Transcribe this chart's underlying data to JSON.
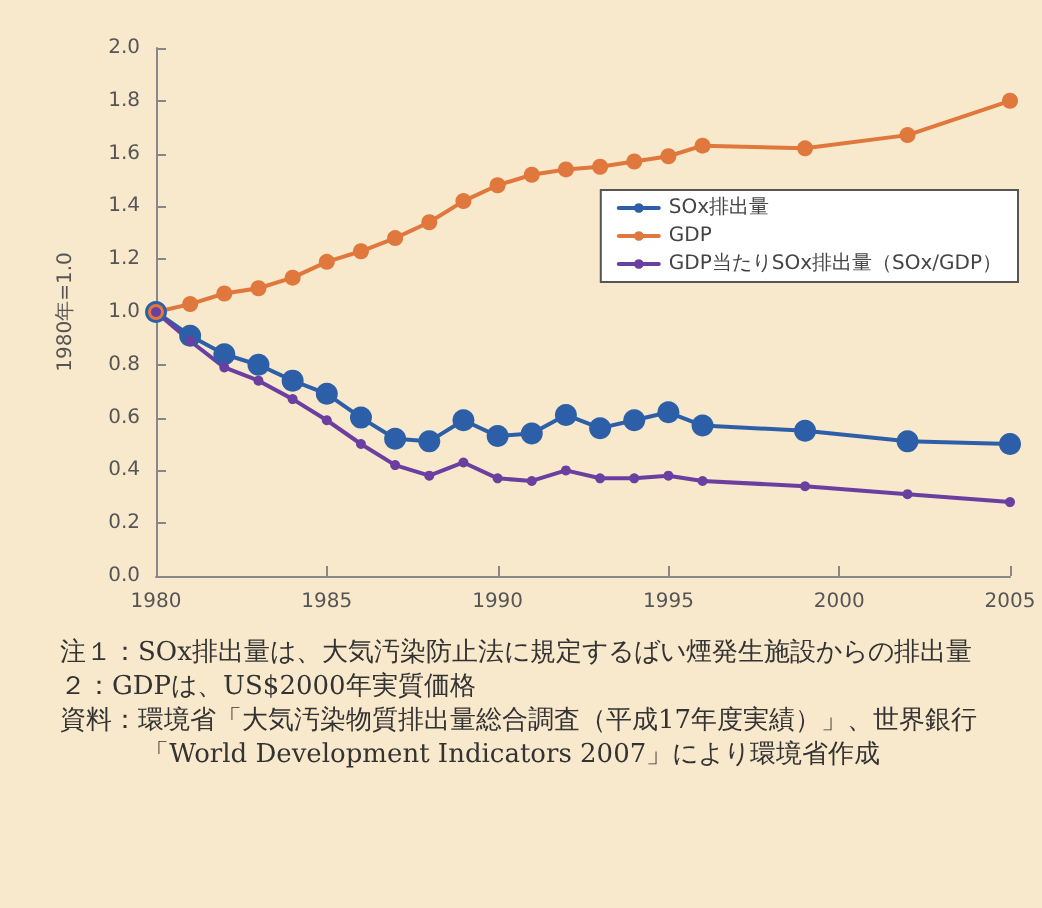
{
  "chart_data": {
    "type": "line",
    "ylabel": "1980年=1.0",
    "x": [
      1980,
      1981,
      1982,
      1983,
      1984,
      1985,
      1986,
      1987,
      1988,
      1989,
      1990,
      1991,
      1992,
      1993,
      1994,
      1995,
      1996,
      1999,
      2002,
      2005
    ],
    "series": [
      {
        "name": "SOx排出量",
        "color": "#2d5fa8",
        "values": [
          1.0,
          0.91,
          0.84,
          0.8,
          0.74,
          0.69,
          0.6,
          0.52,
          0.51,
          0.59,
          0.53,
          0.54,
          0.61,
          0.56,
          0.59,
          0.62,
          0.57,
          0.55,
          0.51,
          0.5
        ]
      },
      {
        "name": "GDP",
        "color": "#e0773c",
        "values": [
          1.0,
          1.03,
          1.07,
          1.09,
          1.13,
          1.19,
          1.23,
          1.28,
          1.34,
          1.42,
          1.48,
          1.52,
          1.54,
          1.55,
          1.57,
          1.59,
          1.63,
          1.62,
          1.67,
          1.8
        ]
      },
      {
        "name": "GDP当たりSOx排出量（SOx/GDP）",
        "color": "#6b3fa0",
        "values": [
          1.0,
          0.89,
          0.79,
          0.74,
          0.67,
          0.59,
          0.5,
          0.42,
          0.38,
          0.43,
          0.37,
          0.36,
          0.4,
          0.37,
          0.37,
          0.38,
          0.36,
          0.34,
          0.31,
          0.28
        ]
      }
    ],
    "xlim": [
      1980,
      2005
    ],
    "xticks": [
      1980,
      1985,
      1990,
      1995,
      2000,
      2005
    ],
    "ylim": [
      0,
      2
    ],
    "yticks": [
      {
        "value": 0,
        "label": "0.0"
      },
      {
        "value": 0.2,
        "label": "0.2"
      },
      {
        "value": 0.4,
        "label": "0.4"
      },
      {
        "value": 0.6,
        "label": "0.6"
      },
      {
        "value": 0.8,
        "label": "0.8"
      },
      {
        "value": 1,
        "label": "1.0"
      },
      {
        "value": 1.2,
        "label": "1.2"
      },
      {
        "value": 1.4,
        "label": "1.4"
      },
      {
        "value": 1.6,
        "label": "1.6"
      },
      {
        "value": 1.8,
        "label": "1.8"
      },
      {
        "value": 2,
        "label": "2.0"
      }
    ],
    "grid": false,
    "legend": "right",
    "marker": "circle",
    "line_style": "solid",
    "annotations": [
      "注１：SOx排出量は、大気汚染防止法に規定するばい煙発生施設からの排出量",
      "２：GDPは、US$2000年実質価格",
      "資料：環境省「大気汚染物質排出量総合調査（平成17年度実績）」、世界銀行「World Development Indicators 2007」により環境省作成"
    ]
  }
}
